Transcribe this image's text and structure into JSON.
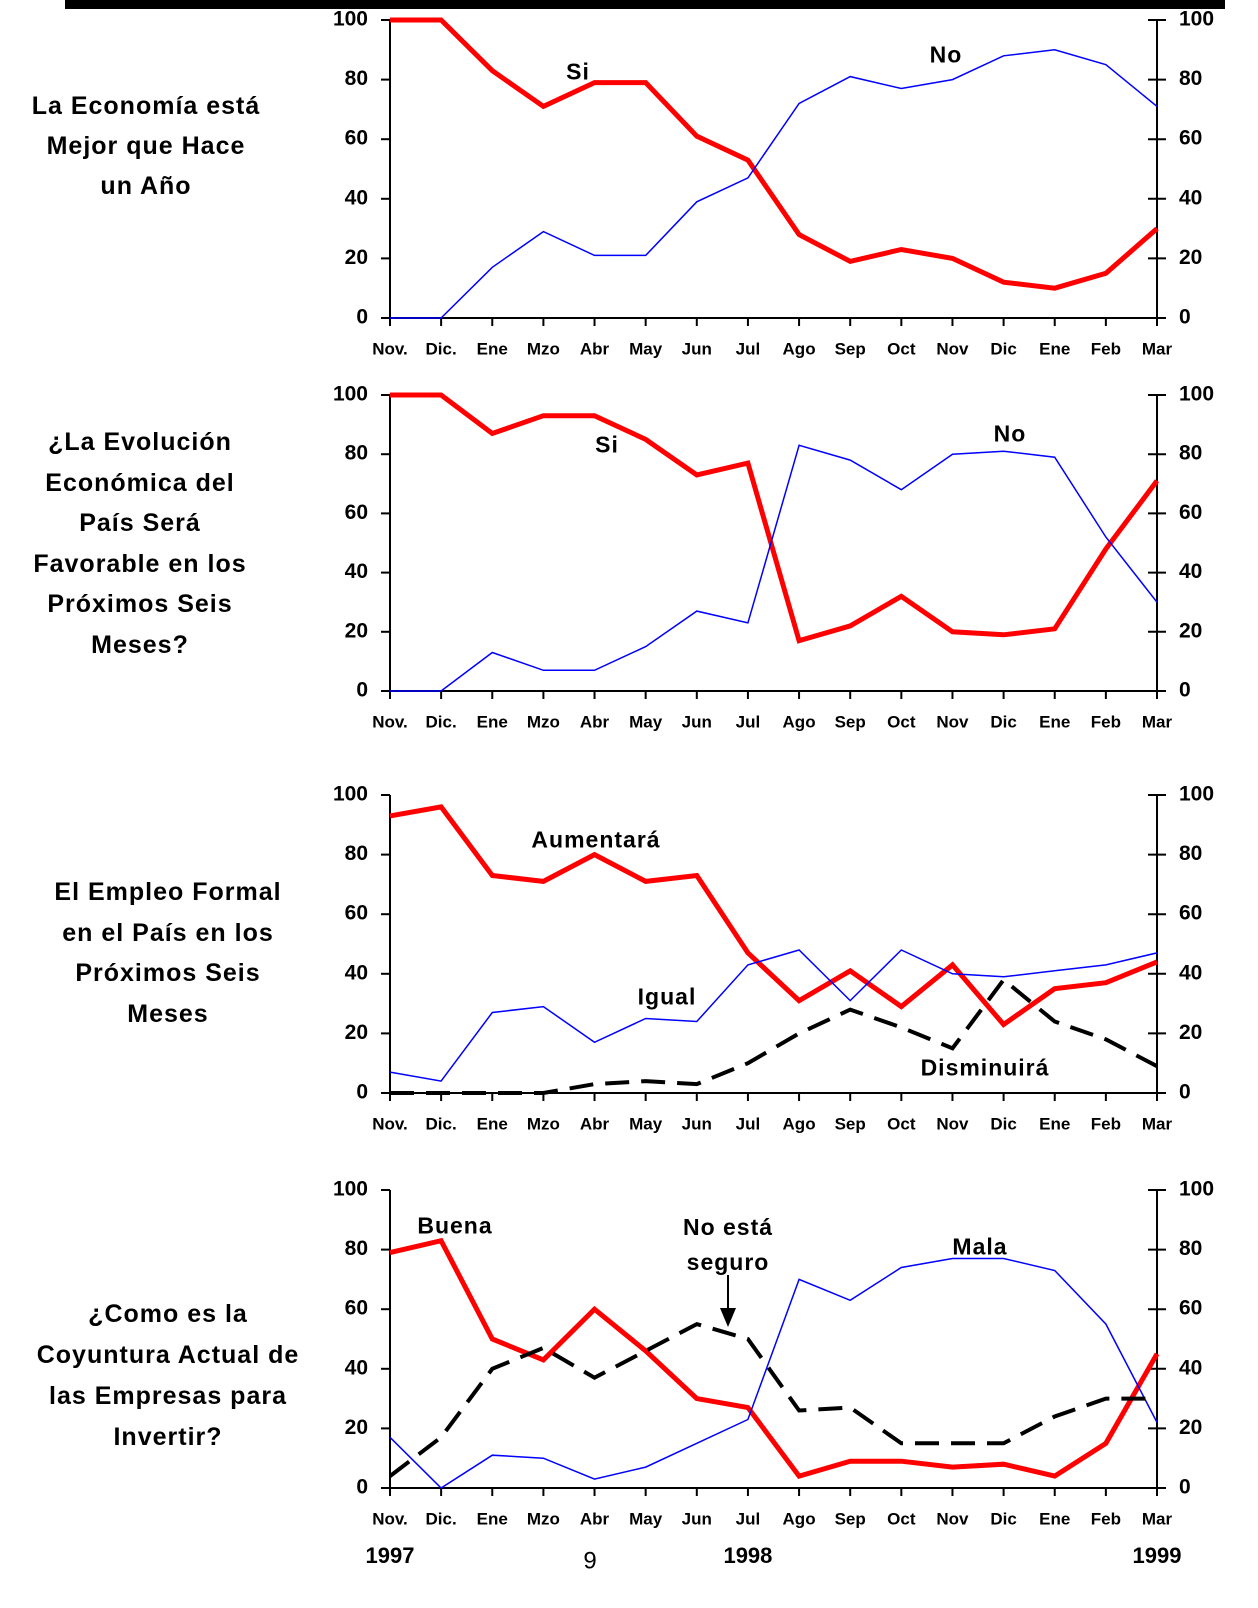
{
  "chart_data": [
    {
      "type": "line",
      "title": [
        "La Economía está",
        "Mejor que Hace",
        "un Año"
      ],
      "categories": [
        "Nov.",
        "Dic.",
        "Ene",
        "Mzo",
        "Abr",
        "May",
        "Jun",
        "Jul",
        "Ago",
        "Sep",
        "Oct",
        "Nov",
        "Dic",
        "Ene",
        "Feb",
        "Mar"
      ],
      "ylim": [
        0,
        100
      ],
      "yticks": [
        0,
        20,
        40,
        60,
        80,
        100
      ],
      "series": [
        {
          "name": "Si",
          "color": "#ff0000",
          "values": [
            100,
            100,
            83,
            71,
            79,
            79,
            61,
            53,
            28,
            19,
            23,
            20,
            12,
            10,
            15,
            30
          ]
        },
        {
          "name": "No",
          "color": "#0000ff",
          "values": [
            0,
            0,
            17,
            29,
            21,
            21,
            39,
            47,
            72,
            81,
            77,
            80,
            88,
            90,
            85,
            71
          ]
        }
      ]
    },
    {
      "type": "line",
      "title": [
        "¿La Evolución",
        "Económica del",
        "País Será",
        "Favorable en los",
        "Próximos Seis",
        "Meses?"
      ],
      "categories": [
        "Nov.",
        "Dic.",
        "Ene",
        "Mzo",
        "Abr",
        "May",
        "Jun",
        "Jul",
        "Ago",
        "Sep",
        "Oct",
        "Nov",
        "Dic",
        "Ene",
        "Feb",
        "Mar"
      ],
      "ylim": [
        0,
        100
      ],
      "yticks": [
        0,
        20,
        40,
        60,
        80,
        100
      ],
      "series": [
        {
          "name": "Si",
          "color": "#ff0000",
          "values": [
            100,
            100,
            87,
            93,
            93,
            85,
            73,
            77,
            17,
            22,
            32,
            20,
            19,
            21,
            48,
            71
          ]
        },
        {
          "name": "No",
          "color": "#0000ff",
          "values": [
            0,
            0,
            13,
            7,
            7,
            15,
            27,
            23,
            83,
            78,
            68,
            80,
            81,
            79,
            52,
            30
          ]
        }
      ]
    },
    {
      "type": "line",
      "title": [
        "El Empleo Formal",
        "en el País en los",
        "Próximos Seis",
        "Meses"
      ],
      "categories": [
        "Nov.",
        "Dic.",
        "Ene",
        "Mzo",
        "Abr",
        "May",
        "Jun",
        "Jul",
        "Ago",
        "Sep",
        "Oct",
        "Nov",
        "Dic",
        "Ene",
        "Feb",
        "Mar"
      ],
      "ylim": [
        0,
        100
      ],
      "yticks": [
        0,
        20,
        40,
        60,
        80,
        100
      ],
      "series": [
        {
          "name": "Aumentará",
          "color": "#ff0000",
          "values": [
            93,
            96,
            73,
            71,
            80,
            71,
            73,
            47,
            31,
            41,
            29,
            43,
            23,
            35,
            37,
            44
          ]
        },
        {
          "name": "Igual",
          "color": "#0000ff",
          "values": [
            7,
            4,
            27,
            29,
            17,
            25,
            24,
            43,
            48,
            31,
            48,
            40,
            39,
            41,
            43,
            47
          ]
        },
        {
          "name": "Disminuirá",
          "color": "#000000",
          "dashed": true,
          "values": [
            0,
            0,
            0,
            0,
            3,
            4,
            3,
            10,
            20,
            28,
            22,
            15,
            38,
            24,
            18,
            9
          ]
        }
      ]
    },
    {
      "type": "line",
      "title": [
        "¿Como es la",
        "Coyuntura Actual de",
        "las Empresas para",
        "Invertir?"
      ],
      "categories": [
        "Nov.",
        "Dic.",
        "Ene",
        "Mzo",
        "Abr",
        "May",
        "Jun",
        "Jul",
        "Ago",
        "Sep",
        "Oct",
        "Nov",
        "Dic",
        "Ene",
        "Feb",
        "Mar"
      ],
      "years": [
        "1997",
        "1998",
        "1999"
      ],
      "ylim": [
        0,
        100
      ],
      "yticks": [
        0,
        20,
        40,
        60,
        80,
        100
      ],
      "series": [
        {
          "name": "Buena",
          "color": "#ff0000",
          "values": [
            79,
            83,
            50,
            43,
            60,
            46,
            30,
            27,
            4,
            9,
            9,
            7,
            8,
            4,
            15,
            45
          ]
        },
        {
          "name": "Mala",
          "color": "#0000ff",
          "values": [
            17,
            0,
            11,
            10,
            3,
            7,
            15,
            23,
            70,
            63,
            74,
            77,
            77,
            73,
            55,
            22
          ]
        },
        {
          "name": "No está seguro",
          "color": "#000000",
          "dashed": true,
          "values": [
            4,
            17,
            40,
            47,
            37,
            46,
            55,
            50,
            26,
            27,
            15,
            15,
            15,
            24,
            30,
            30
          ]
        }
      ]
    }
  ],
  "page_number": "9"
}
